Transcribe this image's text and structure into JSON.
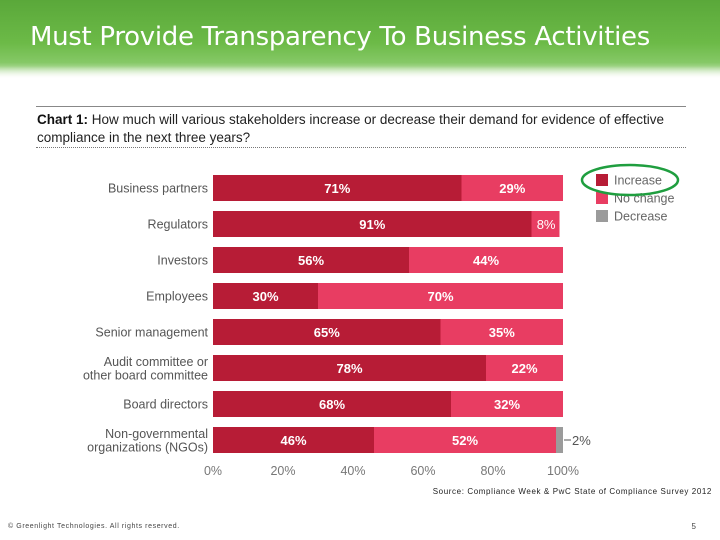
{
  "slide": {
    "title": "Must Provide Transparency To Business Activities",
    "source": "Source: Compliance Week & PwC State of Compliance Survey 2012",
    "footer_left": "© Greenlight Technologies. All rights reserved.",
    "page_number": "5"
  },
  "chart_heading": {
    "prefix": "Chart 1:",
    "text": " How much will various stakeholders increase or decrease their demand for evidence of effective compliance in the next three years?"
  },
  "colors": {
    "increase": "#b71c36",
    "no_change": "#e83d62",
    "decrease": "#9b9b9b",
    "highlight": "#1f9e3f"
  },
  "chart_data": {
    "type": "bar",
    "orientation": "horizontal",
    "stacked": true,
    "categories": [
      [
        "Business partners"
      ],
      [
        "Regulators"
      ],
      [
        "Investors"
      ],
      [
        "Employees"
      ],
      [
        "Senior management"
      ],
      [
        "Audit committee or",
        "other board committee"
      ],
      [
        "Board directors"
      ],
      [
        "Non-governmental",
        "organizations (NGOs)"
      ]
    ],
    "series": [
      {
        "name": "Increase",
        "values": [
          71,
          91,
          56,
          30,
          65,
          78,
          68,
          46
        ]
      },
      {
        "name": "No change",
        "values": [
          29,
          8,
          44,
          70,
          35,
          22,
          32,
          52
        ]
      },
      {
        "name": "Decrease",
        "values": [
          0,
          0,
          0,
          0,
          0,
          0,
          0,
          2
        ]
      }
    ],
    "value_labels": [
      [
        "71%",
        "91%",
        "56%",
        "30%",
        "65%",
        "78%",
        "68%",
        "46%"
      ],
      [
        "29%",
        "8%",
        "44%",
        "70%",
        "35%",
        "22%",
        "32%",
        "52%"
      ],
      [
        "",
        "",
        "",
        "",
        "",
        "",
        "",
        "2%"
      ]
    ],
    "x_ticks": [
      "0%",
      "20%",
      "40%",
      "60%",
      "80%",
      "100%"
    ],
    "xlim": [
      0,
      100
    ],
    "legend_position": "right",
    "legend_highlight": "Increase"
  }
}
